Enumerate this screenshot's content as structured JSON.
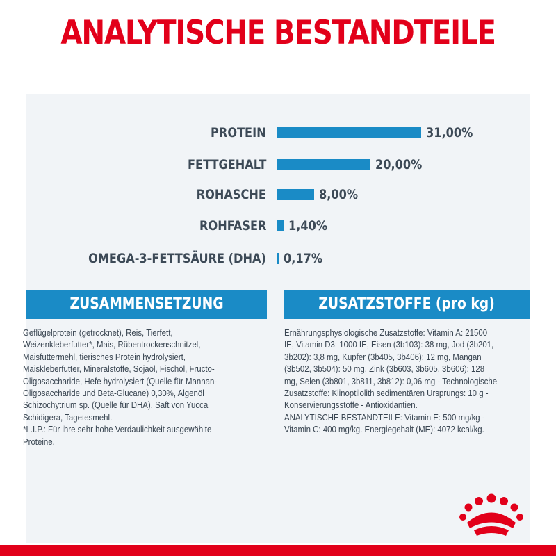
{
  "title": "ANALYTISCHE BESTANDTEILE",
  "chart_data": {
    "type": "bar",
    "orientation": "horizontal",
    "categories": [
      "PROTEIN",
      "FETTGEHALT",
      "ROHASCHE",
      "ROHFASER",
      "OMEGA-3-FETTSÄURE (DHA)"
    ],
    "values": [
      31.0,
      20.0,
      8.0,
      1.4,
      0.17
    ],
    "value_labels": [
      "31,00%",
      "20,00%",
      "8,00%",
      "1,40%",
      "0,17%"
    ],
    "bar_color": "#1a8bc6",
    "xlim": [
      0,
      31
    ]
  },
  "sections": {
    "zusammensetzung": {
      "heading": "ZUSAMMENSETZUNG",
      "lines": [
        "Geflügelprotein (getrocknet), Reis, Tierfett,",
        "Weizenkleberfutter*, Mais, Rübentrockenschnitzel,",
        "Maisfuttermehl, tierisches Protein hydrolysiert,",
        "Maiskleberfutter, Mineralstoffe, Sojaöl, Fischöl, Fructo-",
        "Oligosaccharide, Hefe hydrolysiert (Quelle für Mannan-",
        "Oligosaccharide und Beta-Glucane) 0,30%, Algenöl",
        "Schizochytrium sp. (Quelle für DHA), Saft von Yucca",
        "Schidigera, Tagetesmehl.",
        "*L.I.P.: Für ihre sehr hohe Verdaulichkeit ausgewählte",
        "Proteine."
      ]
    },
    "zusatzstoffe": {
      "heading": "ZUSATZSTOFFE (pro kg)",
      "lines": [
        "Ernährungsphysiologische Zusatzstoffe: Vitamin A: 21500",
        "IE, Vitamin D3: 1000 IE, Eisen (3b103): 38 mg, Jod (3b201,",
        "3b202): 3,8 mg, Kupfer (3b405, 3b406): 12 mg, Mangan",
        "(3b502, 3b504): 50 mg, Zink (3b603, 3b605, 3b606): 128",
        "mg, Selen (3b801, 3b811, 3b812): 0,06 mg - Technologische",
        "Zusatzstoffe: Klinoptilolith sedimentären Ursprungs: 10 g -",
        "Konservierungsstoffe - Antioxidantien.",
        "ANALYTISCHE BESTANDTEILE: Vitamin E: 500 mg/kg -",
        "Vitamin C: 400 mg/kg. Energiegehalt (ME): 4072 kcal/kg."
      ]
    }
  },
  "colors": {
    "brand_red": "#e2001a",
    "accent_blue": "#1a8bc6",
    "panel": "#f1f4f7",
    "text": "#3d4a57"
  },
  "logo": {
    "icon": "crown-icon"
  }
}
